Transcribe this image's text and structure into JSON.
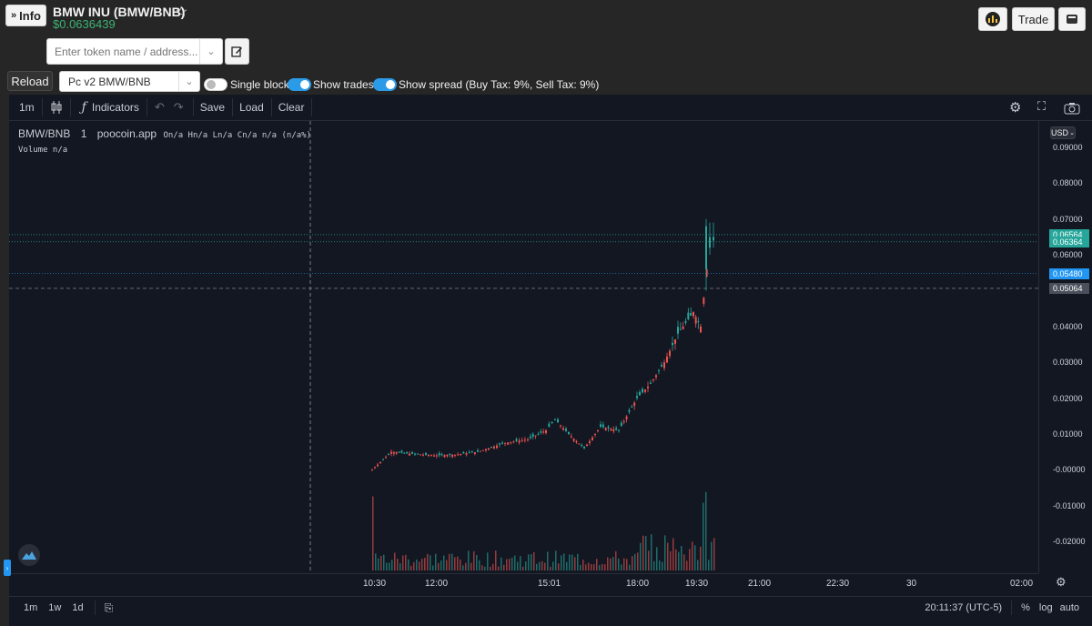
{
  "header": {
    "info_button": "Info",
    "token_title": "BMW INU (BMW/BNB)",
    "token_price": "$0.0636439",
    "trade_button": "Trade"
  },
  "search": {
    "placeholder": "Enter token name / address..."
  },
  "controls": {
    "reload_button": "Reload",
    "pair_select": "Pc v2 BMW/BNB",
    "single_blocks": "Single blocks",
    "show_trades": "Show trades |",
    "show_spread": "Show spread (Buy Tax: 9%, Sell Tax: 9%)"
  },
  "chart_toolbar": {
    "interval": "1m",
    "indicators": "Indicators",
    "save": "Save",
    "load": "Load",
    "clear": "Clear"
  },
  "legend": {
    "symbol": "BMW/BNB",
    "interval": "1",
    "source": "poocoin.app",
    "ohlc": "On/a Hn/a Ln/a Cn/a n/a (n/a%)",
    "volume": "Volume n/a"
  },
  "price_axis": {
    "currency": "USD",
    "ticks": [
      "0.09000",
      "0.08000",
      "0.07000",
      "0.06000",
      "0.05000",
      "0.04000",
      "0.03000",
      "0.02000",
      "0.01000",
      "-0.00000",
      "-0.01000",
      "-0.02000"
    ],
    "markers": [
      {
        "value": "0.06564",
        "color": "#26a69a"
      },
      {
        "value": "0.06364",
        "color": "#26a69a"
      },
      {
        "value": "0.05480",
        "color": "#2196f3"
      },
      {
        "value": "0.05064",
        "color": "#4a4f5c"
      }
    ]
  },
  "time_axis": {
    "ticks": [
      "10:30",
      "12:00",
      "15:01",
      "18:00",
      "19:30",
      "21:00",
      "22:30",
      "30",
      "02:00"
    ]
  },
  "footer": {
    "ranges": [
      "1m",
      "1w",
      "1d"
    ],
    "clock": "20:11:37 (UTC-5)",
    "percent": "%",
    "log": "log",
    "auto": "auto"
  },
  "chart_data": {
    "type": "candlestick",
    "x": [
      "10:30",
      "11:00",
      "11:30",
      "12:00",
      "12:30",
      "13:00",
      "13:30",
      "14:00",
      "14:30",
      "15:01",
      "15:30",
      "16:00",
      "16:30",
      "17:00",
      "17:30",
      "18:00",
      "18:30",
      "19:00",
      "19:30",
      "19:45",
      "20:00"
    ],
    "y": [
      0.0,
      0.005,
      0.0045,
      0.004,
      0.0042,
      0.005,
      0.0075,
      0.0085,
      0.011,
      0.014,
      0.01,
      0.006,
      0.012,
      0.011,
      0.02,
      0.024,
      0.03,
      0.038,
      0.044,
      0.04,
      0.064
    ],
    "ylim": [
      -0.025,
      0.095
    ]
  }
}
